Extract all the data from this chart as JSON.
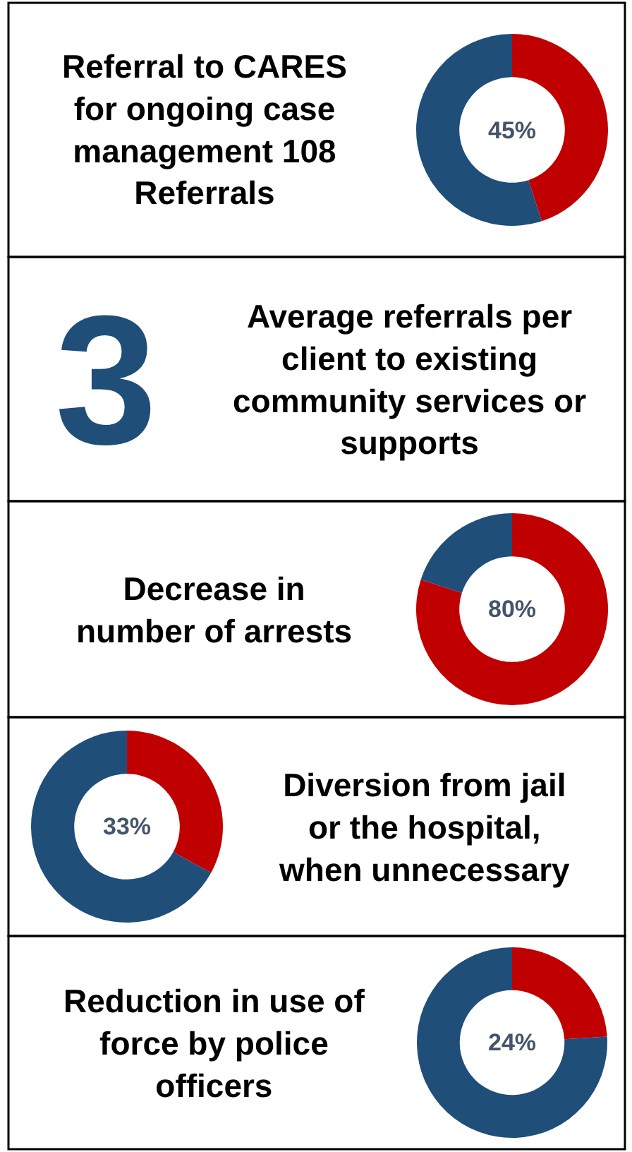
{
  "chart_data": [
    {
      "type": "donut",
      "title": "Referral to CARES for ongoing case management 108 Referrals",
      "categories": [
        null,
        null
      ],
      "values": [
        45,
        55
      ],
      "colors": [
        "#c00000",
        "#1f4e79"
      ],
      "annotations": [
        "45%"
      ]
    },
    {
      "type": "other",
      "title": "Average referrals per client to existing community services or supports",
      "annotations": [
        "3"
      ]
    },
    {
      "type": "donut",
      "title": "Decrease in number of arrests",
      "categories": [
        null,
        null
      ],
      "values": [
        80,
        20
      ],
      "colors": [
        "#c00000",
        "#1f4e79"
      ],
      "annotations": [
        "80%"
      ]
    },
    {
      "type": "donut",
      "title": "Diversion from jail or the hospital, when unnecessary",
      "categories": [
        null,
        null
      ],
      "values": [
        33,
        67
      ],
      "colors": [
        "#c00000",
        "#1f4e79"
      ],
      "annotations": [
        "33%"
      ]
    },
    {
      "type": "donut",
      "title": "Reduction in use of force by police officers",
      "categories": [
        null,
        null
      ],
      "values": [
        24,
        76
      ],
      "colors": [
        "#c00000",
        "#1f4e79"
      ],
      "annotations": [
        "24%"
      ]
    }
  ]
}
